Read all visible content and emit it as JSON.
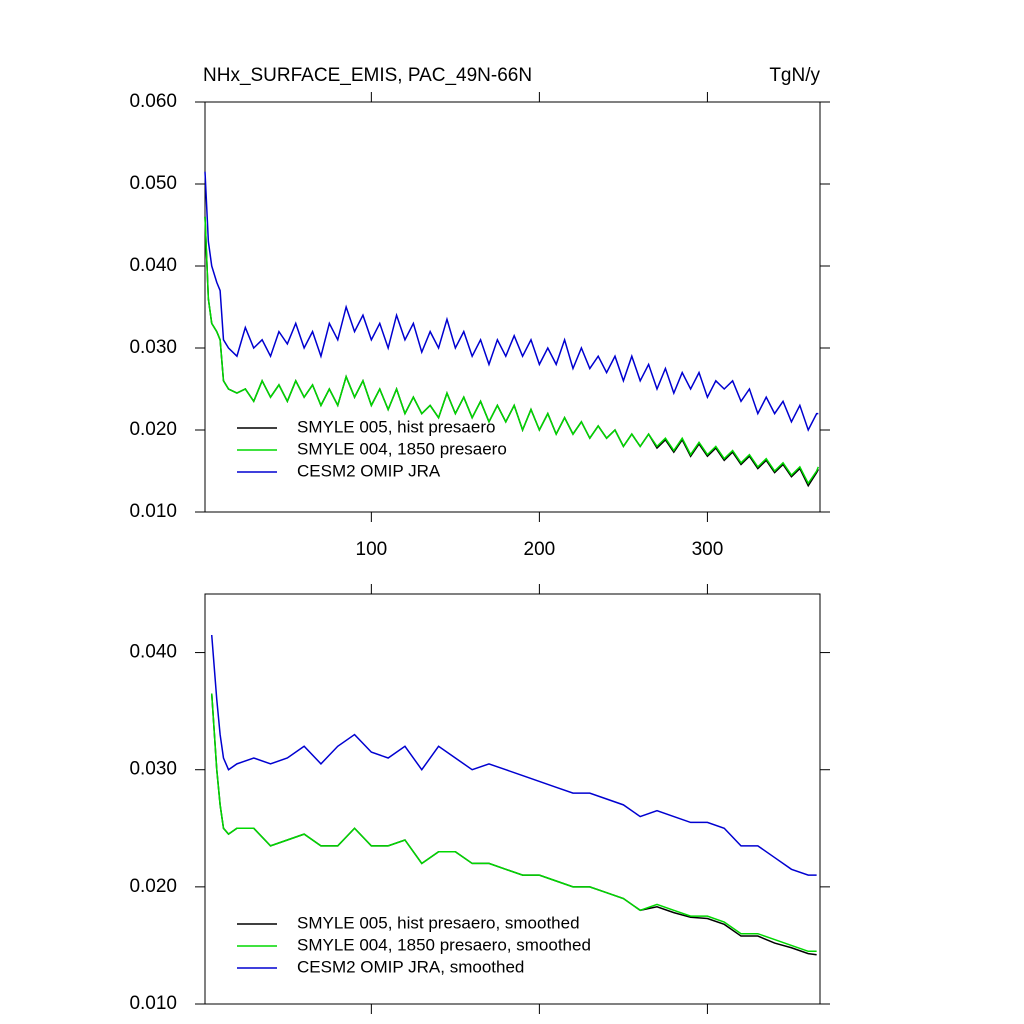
{
  "chart_data": [
    {
      "type": "line",
      "title": "NHx_SURFACE_EMIS, PAC_49N-66N",
      "units": "TgN/y",
      "xlim": [
        1,
        367
      ],
      "xticks": [
        100,
        200,
        300
      ],
      "ylim": [
        0.01,
        0.06
      ],
      "yticks": [
        {
          "value": 0.01,
          "label": "0.010"
        },
        {
          "value": 0.02,
          "label": "0.020"
        },
        {
          "value": 0.03,
          "label": "0.030"
        },
        {
          "value": 0.04,
          "label": "0.040"
        },
        {
          "value": 0.05,
          "label": "0.050"
        },
        {
          "value": 0.06,
          "label": "0.060"
        }
      ],
      "legend": "lower left",
      "x": [
        1,
        3,
        5,
        8,
        10,
        12,
        15,
        20,
        25,
        30,
        35,
        40,
        45,
        50,
        55,
        60,
        65,
        70,
        75,
        80,
        85,
        90,
        95,
        100,
        105,
        110,
        115,
        120,
        125,
        130,
        135,
        140,
        145,
        150,
        155,
        160,
        165,
        170,
        175,
        180,
        185,
        190,
        195,
        200,
        205,
        210,
        215,
        220,
        225,
        230,
        235,
        240,
        245,
        250,
        255,
        260,
        265,
        270,
        275,
        280,
        285,
        290,
        295,
        300,
        305,
        310,
        315,
        320,
        325,
        330,
        335,
        340,
        345,
        350,
        355,
        360,
        365,
        366
      ],
      "series": [
        {
          "name": "SMYLE 005, hist presaero",
          "color": "#000000",
          "values": [
            0.046,
            0.036,
            0.033,
            0.032,
            0.031,
            0.026,
            0.025,
            0.0245,
            0.025,
            0.0235,
            0.026,
            0.024,
            0.0255,
            0.0235,
            0.026,
            0.024,
            0.0255,
            0.023,
            0.025,
            0.023,
            0.0265,
            0.024,
            0.026,
            0.023,
            0.025,
            0.0225,
            0.025,
            0.022,
            0.024,
            0.022,
            0.023,
            0.0215,
            0.0245,
            0.022,
            0.024,
            0.0215,
            0.0235,
            0.021,
            0.023,
            0.021,
            0.023,
            0.02,
            0.0225,
            0.02,
            0.022,
            0.0195,
            0.0215,
            0.0195,
            0.021,
            0.019,
            0.0205,
            0.019,
            0.02,
            0.018,
            0.0195,
            0.018,
            0.0195,
            0.0178,
            0.0188,
            0.0173,
            0.0188,
            0.0168,
            0.0183,
            0.0168,
            0.0178,
            0.0163,
            0.0173,
            0.0158,
            0.0168,
            0.0153,
            0.0163,
            0.0148,
            0.0158,
            0.0143,
            0.0153,
            0.0132,
            0.0148,
            0.0152
          ]
        },
        {
          "name": "SMYLE 004, 1850 presaero",
          "color": "#00d800",
          "values": [
            0.046,
            0.036,
            0.033,
            0.032,
            0.031,
            0.026,
            0.025,
            0.0245,
            0.025,
            0.0235,
            0.026,
            0.024,
            0.0255,
            0.0235,
            0.026,
            0.024,
            0.0255,
            0.023,
            0.025,
            0.023,
            0.0265,
            0.024,
            0.026,
            0.023,
            0.025,
            0.0225,
            0.025,
            0.022,
            0.024,
            0.022,
            0.023,
            0.0215,
            0.0245,
            0.022,
            0.024,
            0.0215,
            0.0235,
            0.021,
            0.023,
            0.021,
            0.023,
            0.02,
            0.0225,
            0.02,
            0.022,
            0.0195,
            0.0215,
            0.0195,
            0.021,
            0.019,
            0.0205,
            0.019,
            0.02,
            0.018,
            0.0195,
            0.018,
            0.0195,
            0.018,
            0.019,
            0.0175,
            0.019,
            0.017,
            0.0185,
            0.017,
            0.018,
            0.0165,
            0.0175,
            0.016,
            0.017,
            0.0155,
            0.0165,
            0.015,
            0.016,
            0.0145,
            0.0155,
            0.0135,
            0.015,
            0.0155
          ]
        },
        {
          "name": "CESM2 OMIP JRA",
          "color": "#0000d0",
          "values": [
            0.0515,
            0.043,
            0.04,
            0.038,
            0.037,
            0.031,
            0.03,
            0.029,
            0.0325,
            0.03,
            0.031,
            0.029,
            0.032,
            0.0305,
            0.033,
            0.03,
            0.032,
            0.029,
            0.033,
            0.031,
            0.035,
            0.032,
            0.034,
            0.031,
            0.033,
            0.03,
            0.034,
            0.031,
            0.033,
            0.0295,
            0.032,
            0.03,
            0.0335,
            0.03,
            0.032,
            0.029,
            0.031,
            0.028,
            0.031,
            0.029,
            0.0315,
            0.029,
            0.031,
            0.028,
            0.03,
            0.028,
            0.031,
            0.0275,
            0.03,
            0.0275,
            0.029,
            0.027,
            0.029,
            0.026,
            0.029,
            0.026,
            0.028,
            0.025,
            0.0275,
            0.0245,
            0.027,
            0.025,
            0.027,
            0.024,
            0.026,
            0.025,
            0.026,
            0.0235,
            0.025,
            0.022,
            0.024,
            0.022,
            0.0235,
            0.021,
            0.023,
            0.02,
            0.022,
            0.022
          ]
        }
      ]
    },
    {
      "type": "line",
      "xlim": [
        1,
        367
      ],
      "ylim": [
        0.01,
        0.045
      ],
      "yticks": [
        {
          "value": 0.01,
          "label": "0.010"
        },
        {
          "value": 0.02,
          "label": "0.020"
        },
        {
          "value": 0.03,
          "label": "0.030"
        },
        {
          "value": 0.04,
          "label": "0.040"
        }
      ],
      "legend": "lower left",
      "x": [
        5,
        8,
        10,
        12,
        15,
        20,
        30,
        40,
        50,
        60,
        70,
        80,
        90,
        100,
        110,
        120,
        130,
        140,
        150,
        160,
        170,
        180,
        190,
        200,
        210,
        220,
        230,
        240,
        250,
        260,
        270,
        280,
        290,
        300,
        310,
        320,
        330,
        340,
        350,
        360,
        365
      ],
      "series": [
        {
          "name": "SMYLE 005, hist presaero, smoothed",
          "color": "#000000",
          "values": [
            0.0365,
            0.03,
            0.027,
            0.025,
            0.0245,
            0.025,
            0.025,
            0.0235,
            0.024,
            0.0245,
            0.0235,
            0.0235,
            0.025,
            0.0235,
            0.0235,
            0.024,
            0.022,
            0.023,
            0.023,
            0.022,
            0.022,
            0.0215,
            0.021,
            0.021,
            0.0205,
            0.02,
            0.02,
            0.0195,
            0.019,
            0.018,
            0.0183,
            0.0178,
            0.0174,
            0.0173,
            0.0168,
            0.0158,
            0.0158,
            0.0152,
            0.0148,
            0.0143,
            0.0142
          ]
        },
        {
          "name": "SMYLE 004, 1850 presaero, smoothed",
          "color": "#00d800",
          "values": [
            0.0365,
            0.03,
            0.027,
            0.025,
            0.0245,
            0.025,
            0.025,
            0.0235,
            0.024,
            0.0245,
            0.0235,
            0.0235,
            0.025,
            0.0235,
            0.0235,
            0.024,
            0.022,
            0.023,
            0.023,
            0.022,
            0.022,
            0.0215,
            0.021,
            0.021,
            0.0205,
            0.02,
            0.02,
            0.0195,
            0.019,
            0.018,
            0.0185,
            0.018,
            0.0175,
            0.0175,
            0.017,
            0.016,
            0.016,
            0.0155,
            0.015,
            0.0145,
            0.0145
          ]
        },
        {
          "name": "CESM2 OMIP JRA, smoothed",
          "color": "#0000d0",
          "values": [
            0.0415,
            0.036,
            0.033,
            0.031,
            0.03,
            0.0305,
            0.031,
            0.0305,
            0.031,
            0.032,
            0.0305,
            0.032,
            0.033,
            0.0315,
            0.031,
            0.032,
            0.03,
            0.032,
            0.031,
            0.03,
            0.0305,
            0.03,
            0.0295,
            0.029,
            0.0285,
            0.028,
            0.028,
            0.0275,
            0.027,
            0.026,
            0.0265,
            0.026,
            0.0255,
            0.0255,
            0.025,
            0.0235,
            0.0235,
            0.0225,
            0.0215,
            0.021,
            0.021
          ]
        }
      ]
    }
  ]
}
